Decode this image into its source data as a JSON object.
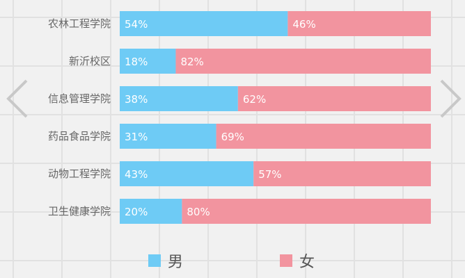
{
  "chart_data": {
    "type": "bar",
    "orientation": "horizontal",
    "stacked": "percent",
    "categories": [
      "农林工程学院",
      "新沂校区",
      "信息管理学院",
      "药品食品学院",
      "动物工程学院",
      "卫生健康学院"
    ],
    "series": [
      {
        "name": "男",
        "values": [
          54,
          18,
          38,
          31,
          43,
          20
        ],
        "color": "#6ecbf5"
      },
      {
        "name": "女",
        "values": [
          46,
          82,
          62,
          69,
          57,
          80
        ],
        "color": "#f2949f"
      }
    ],
    "xlim": [
      0,
      100
    ],
    "value_suffix": "%",
    "legend_position": "bottom",
    "grid": false
  },
  "nav": {
    "prev_icon": "chevron-left-icon",
    "next_icon": "chevron-right-icon"
  }
}
